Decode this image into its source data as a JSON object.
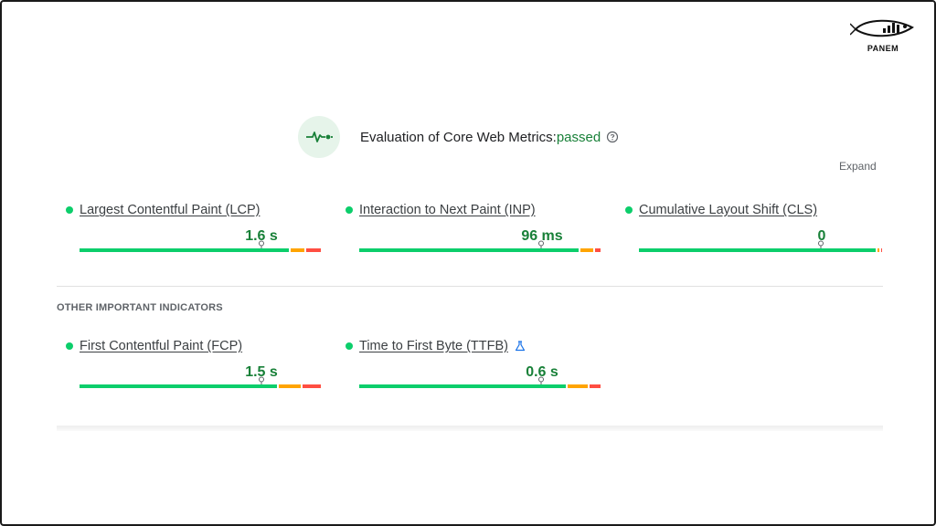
{
  "logo": {
    "text": "PANEM",
    "icon": "fish-logo"
  },
  "evaluation": {
    "icon": "pulse-icon",
    "title": "Evaluation of Core Web Metrics:",
    "status": "passed",
    "help_icon": "help-circle-icon"
  },
  "expand_label": "Expand",
  "core_metrics": [
    {
      "label": "Largest Contentful Paint (LCP)",
      "value": "1.6 s",
      "status": "good"
    },
    {
      "label": "Interaction to Next Paint (INP)",
      "value": "96 ms",
      "status": "good"
    },
    {
      "label": "Cumulative Layout Shift (CLS)",
      "value": "0",
      "status": "good"
    }
  ],
  "other_section": {
    "title": "OTHER IMPORTANT INDICATORS",
    "metrics": [
      {
        "label": "First Contentful Paint (FCP)",
        "value": "1.5 s",
        "status": "good"
      },
      {
        "label": "Time to First Byte (TTFB)",
        "value": "0.6 s",
        "status": "good",
        "icon": "lab-flask-icon"
      }
    ]
  },
  "colors": {
    "good": "#0cce6b",
    "needs_improvement": "#ffa400",
    "poor": "#ff4e42",
    "passed_text": "#188038"
  }
}
